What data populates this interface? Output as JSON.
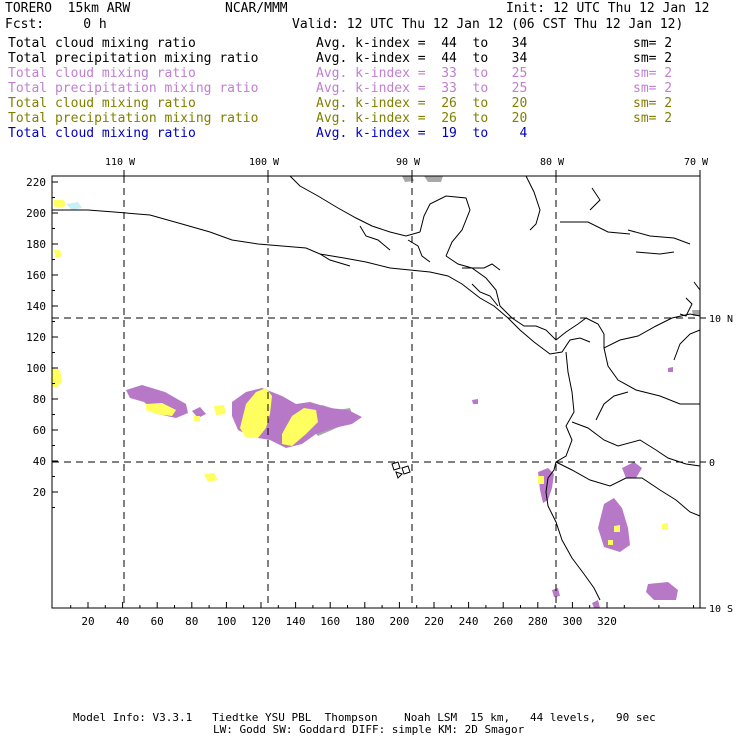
{
  "header": {
    "model": "TORERO  15km ARW",
    "center": "NCAR/MMM",
    "init": "Init: 12 UTC Thu 12 Jan 12",
    "fcst": "Fcst:     0 h",
    "valid": "Valid: 12 UTC Thu 12 Jan 12 (06 CST Thu 12 Jan 12)"
  },
  "legend": [
    {
      "field": "Total cloud mixing ratio",
      "index": "Avg. k-index =  44  to   34",
      "sm": "sm= 2",
      "color": "#000000"
    },
    {
      "field": "Total precipitation mixing ratio",
      "index": "Avg. k-index =  44  to   34",
      "sm": "sm= 2",
      "color": "#000000"
    },
    {
      "field": "Total cloud mixing ratio",
      "index": "Avg. k-index =  33  to   25",
      "sm": "sm= 2",
      "color": "#c080d0"
    },
    {
      "field": "Total precipitation mixing ratio",
      "index": "Avg. k-index =  33  to   25",
      "sm": "sm= 2",
      "color": "#c080d0"
    },
    {
      "field": "Total cloud mixing ratio",
      "index": "Avg. k-index =  26  to   20",
      "sm": "sm= 2",
      "color": "#808000"
    },
    {
      "field": "Total precipitation mixing ratio",
      "index": "Avg. k-index =  26  to   20",
      "sm": "sm= 2",
      "color": "#808000"
    },
    {
      "field": "Total cloud mixing ratio",
      "index": "Avg. k-index =  19  to    4",
      "sm": "",
      "color": "#0000c0"
    }
  ],
  "map": {
    "lon_labels": [
      "110 W",
      "100 W",
      "90 W",
      "80 W",
      "70 W"
    ],
    "lat_labels": [
      "10 N",
      "0",
      "10 S"
    ],
    "y_ticks": [
      "220",
      "200",
      "180",
      "160",
      "140",
      "120",
      "100",
      "80",
      "60",
      "40",
      "20"
    ],
    "x_ticks": [
      "20",
      "40",
      "60",
      "80",
      "100",
      "120",
      "140",
      "160",
      "180",
      "200",
      "220",
      "240",
      "260",
      "280",
      "300",
      "320"
    ],
    "colors": {
      "gray": "#a8a8a8",
      "purple": "#b878c8",
      "yellow": "#ffff60",
      "cyan": "#c8f0f8"
    }
  },
  "footer": {
    "line1": "Model Info: V3.3.1   Tiedtke YSU PBL  Thompson    Noah LSM  15 km,   44 levels,   90 sec",
    "line2": "LW: Godd SW: Goddard DIFF: simple KM: 2D Smagor"
  }
}
